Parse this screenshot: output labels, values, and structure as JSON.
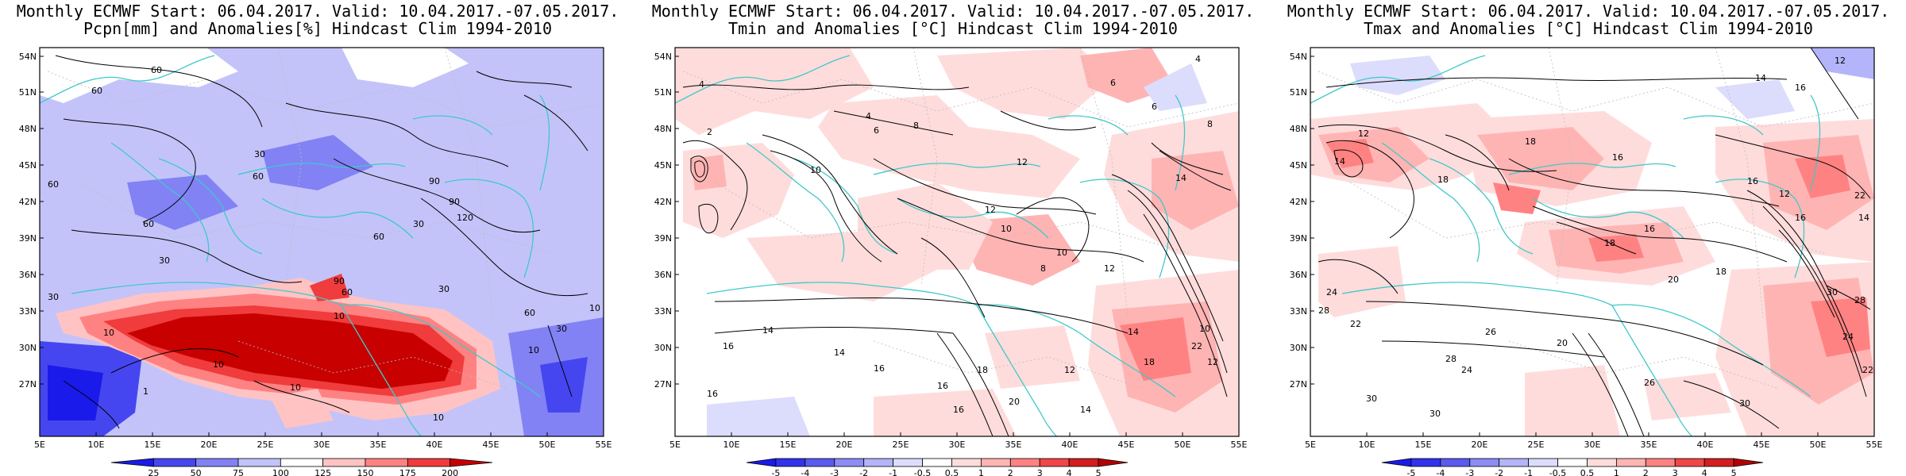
{
  "panels": [
    {
      "id": "pcpn",
      "title_line1": "Monthly ECMWF Start: 06.04.2017. Valid: 10.04.2017.-07.05.2017.",
      "title_line2": "Pcpn[mm] and Anomalies[%] Hindcast Clim 1994-2010",
      "colorbar_labels": [
        "25",
        "50",
        "75",
        "100",
        "125",
        "150",
        "175",
        "200"
      ],
      "colorbar_colors": [
        "#1a1aeb",
        "#4646f0",
        "#8282f5",
        "#c3c3fa",
        "#ffffff",
        "#ffc3c3",
        "#ff8282",
        "#f03c3c",
        "#c80000"
      ],
      "contour_labels": [
        "60",
        "60",
        "60",
        "30",
        "60",
        "90",
        "90",
        "120",
        "30",
        "60",
        "60",
        "30",
        "60",
        "90",
        "30",
        "60",
        "30",
        "10",
        "10",
        "10",
        "30",
        "10",
        "10",
        "10",
        "1",
        "10"
      ]
    },
    {
      "id": "tmin",
      "title_line1": "Monthly ECMWF Start: 06.04.2017. Valid: 10.04.2017.-07.05.2017.",
      "title_line2": "Tmin and Anomalies [°C] Hindcast Clim 1994-2010",
      "colorbar_labels": [
        "-5",
        "-4",
        "-3",
        "-2",
        "-1",
        "-0.5",
        "0.5",
        "1",
        "2",
        "3",
        "4",
        "5"
      ],
      "colorbar_colors": [
        "#1a1aeb",
        "#3232eb",
        "#5a5af0",
        "#8c8cf5",
        "#b4b4fa",
        "#dcdcfc",
        "#ffffff",
        "#ffdcdc",
        "#ffb4b4",
        "#ff8282",
        "#f04646",
        "#d21e1e",
        "#b40000"
      ],
      "contour_labels": [
        "4",
        "6",
        "4",
        "6",
        "8",
        "2",
        "8",
        "4",
        "6",
        "12",
        "14",
        "10",
        "12",
        "10",
        "8",
        "10",
        "12",
        "14",
        "16",
        "14",
        "14",
        "16",
        "18",
        "16",
        "20",
        "16",
        "14",
        "12",
        "18",
        "22",
        "10",
        "12",
        "16"
      ]
    },
    {
      "id": "tmax",
      "title_line1": "Monthly ECMWF Start: 06.04.2017. Valid: 10.04.2017.-07.05.2017.",
      "title_line2": "Tmax and Anomalies [°C] Hindcast Clim 1994-2010",
      "colorbar_labels": [
        "-5",
        "-4",
        "-3",
        "-2",
        "-1",
        "-0.5",
        "0.5",
        "1",
        "2",
        "3",
        "4",
        "5"
      ],
      "colorbar_colors": [
        "#1a1aeb",
        "#3232eb",
        "#5a5af0",
        "#8c8cf5",
        "#b4b4fa",
        "#dcdcfc",
        "#ffffff",
        "#ffdcdc",
        "#ffb4b4",
        "#ff8282",
        "#f04646",
        "#d21e1e",
        "#b40000"
      ],
      "contour_labels": [
        "12",
        "14",
        "16",
        "12",
        "18",
        "14",
        "16",
        "18",
        "12",
        "14",
        "16",
        "22",
        "18",
        "16",
        "20",
        "18",
        "24",
        "28",
        "26",
        "22",
        "20",
        "28",
        "24",
        "30",
        "26",
        "30",
        "24",
        "30",
        "28",
        "22",
        "30",
        "16"
      ]
    }
  ],
  "lat_labels": [
    "54N",
    "51N",
    "48N",
    "45N",
    "42N",
    "39N",
    "36N",
    "33N",
    "30N",
    "27N"
  ],
  "lon_labels": [
    "5E",
    "10E",
    "15E",
    "20E",
    "25E",
    "30E",
    "35E",
    "40E",
    "45E",
    "50E",
    "55E"
  ],
  "colors": {
    "coast": "#40c8c8",
    "contour": "#000000",
    "frame": "#000000"
  }
}
